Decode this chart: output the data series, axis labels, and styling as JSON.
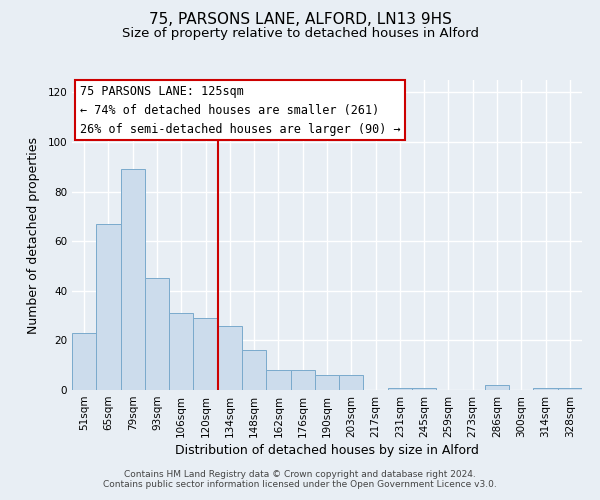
{
  "title": "75, PARSONS LANE, ALFORD, LN13 9HS",
  "subtitle": "Size of property relative to detached houses in Alford",
  "xlabel": "Distribution of detached houses by size in Alford",
  "ylabel": "Number of detached properties",
  "bins": [
    "51sqm",
    "65sqm",
    "79sqm",
    "93sqm",
    "106sqm",
    "120sqm",
    "134sqm",
    "148sqm",
    "162sqm",
    "176sqm",
    "190sqm",
    "203sqm",
    "217sqm",
    "231sqm",
    "245sqm",
    "259sqm",
    "273sqm",
    "286sqm",
    "300sqm",
    "314sqm",
    "328sqm"
  ],
  "values": [
    23,
    67,
    89,
    45,
    31,
    29,
    26,
    16,
    8,
    8,
    6,
    6,
    0,
    1,
    1,
    0,
    0,
    2,
    0,
    1,
    1
  ],
  "bar_color": "#ccdcec",
  "bar_edge_color": "#7aaacc",
  "vline_color": "#cc0000",
  "ylim": [
    0,
    125
  ],
  "yticks": [
    0,
    20,
    40,
    60,
    80,
    100,
    120
  ],
  "annotation_title": "75 PARSONS LANE: 125sqm",
  "annotation_line1": "← 74% of detached houses are smaller (261)",
  "annotation_line2": "26% of semi-detached houses are larger (90) →",
  "annotation_box_color": "#ffffff",
  "annotation_box_edge": "#cc0000",
  "footer1": "Contains HM Land Registry data © Crown copyright and database right 2024.",
  "footer2": "Contains public sector information licensed under the Open Government Licence v3.0.",
  "background_color": "#e8eef4",
  "grid_color": "#ffffff",
  "title_fontsize": 11,
  "subtitle_fontsize": 9.5,
  "axis_label_fontsize": 9,
  "tick_fontsize": 7.5,
  "annotation_fontsize": 8.5,
  "footer_fontsize": 6.5
}
